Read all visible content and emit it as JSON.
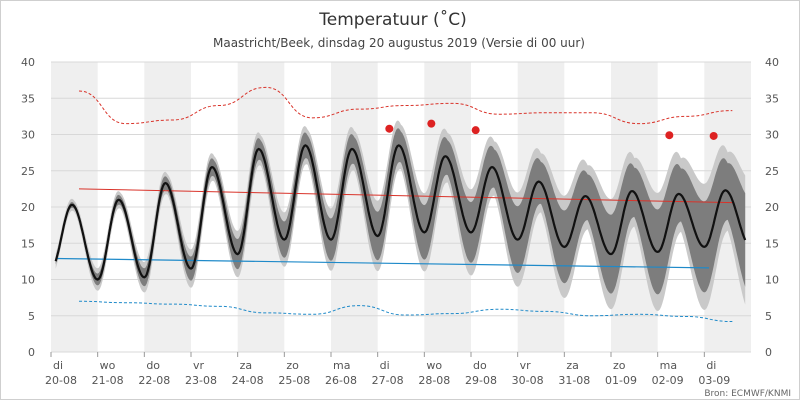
{
  "chart_data": {
    "type": "line",
    "title": "Temperatuur (˚C)",
    "subtitle": "Maastricht/Beek, dinsdag 20 augustus 2019 (Versie di 00 uur)",
    "source": "Bron: ECMWF/KNMI",
    "ylim": [
      0,
      40
    ],
    "yticks": [
      0,
      5,
      10,
      15,
      20,
      25,
      30,
      35,
      40
    ],
    "grid": true,
    "dates": [
      {
        "day": "di",
        "date": "20-08"
      },
      {
        "day": "wo",
        "date": "21-08"
      },
      {
        "day": "do",
        "date": "22-08"
      },
      {
        "day": "vr",
        "date": "23-08"
      },
      {
        "day": "za",
        "date": "24-08"
      },
      {
        "day": "zo",
        "date": "25-08"
      },
      {
        "day": "ma",
        "date": "26-08"
      },
      {
        "day": "di",
        "date": "27-08"
      },
      {
        "day": "wo",
        "date": "28-08"
      },
      {
        "day": "do",
        "date": "29-08"
      },
      {
        "day": "vr",
        "date": "30-08"
      },
      {
        "day": "za",
        "date": "31-08"
      },
      {
        "day": "zo",
        "date": "01-09"
      },
      {
        "day": "ma",
        "date": "02-09"
      },
      {
        "day": "di",
        "date": "03-09"
      }
    ],
    "daily_max": [
      20.3,
      21.0,
      23.3,
      25.5,
      28.0,
      28.5,
      28.0,
      28.5,
      27.0,
      25.5,
      23.5,
      21.5,
      22.2,
      21.8,
      22.3
    ],
    "daily_min": [
      11.5,
      10.0,
      10.3,
      11.5,
      13.5,
      15.5,
      15.5,
      16.0,
      16.5,
      16.5,
      15.5,
      14.5,
      13.5,
      13.8,
      14.5
    ],
    "climate_normal_max": {
      "start": 22.5,
      "end": 20.6,
      "color": "#d9332a"
    },
    "climate_normal_min": {
      "start": 12.9,
      "end": 11.6,
      "color": "#1f8ac9"
    },
    "record_max": [
      36.0,
      31.5,
      32.0,
      34.0,
      36.5,
      32.3,
      33.5,
      34.0,
      34.3,
      32.8,
      33.0,
      33.0,
      31.5,
      32.5,
      33.3
    ],
    "record_min": [
      7.0,
      6.8,
      6.6,
      6.3,
      5.4,
      5.2,
      6.4,
      5.1,
      5.3,
      5.9,
      5.6,
      5.0,
      5.2,
      4.9,
      4.2
    ],
    "record_markers": [
      {
        "x": 7.25,
        "y": 30.8
      },
      {
        "x": 8.15,
        "y": 31.5
      },
      {
        "x": 9.1,
        "y": 30.6
      },
      {
        "x": 13.25,
        "y": 29.9
      },
      {
        "x": 14.2,
        "y": 29.8
      }
    ],
    "colors": {
      "mean": "#111111",
      "band_inner": "#7d7d7d",
      "band_outer": "#c9c9c9",
      "stripe": "#efefef",
      "record_line": "#d9332a",
      "record_min_line": "#1f8ac9",
      "marker": "#dd2222",
      "grid": "#d8d8d8"
    }
  }
}
